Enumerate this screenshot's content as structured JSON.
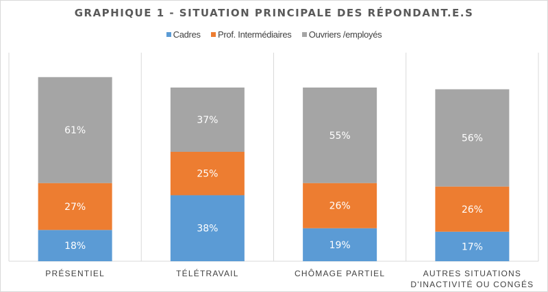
{
  "chart_data": {
    "type": "bar",
    "stacked": true,
    "title": "GRAPHIQUE 1 - SITUATION PRINCIPALE DES RÉPONDANT.E.S",
    "categories": [
      "PRÉSENTIEL",
      "TÉLÉTRAVAIL",
      "CHÔMAGE PARTIEL",
      [
        "AUTRES SITUATIONS",
        "D'INACTIVITÉ OU CONGÉS"
      ]
    ],
    "series": [
      {
        "name": "Cadres",
        "values": [
          18,
          38,
          19,
          17
        ],
        "color": "#5b9bd5"
      },
      {
        "name": "Prof. Intermédiaires",
        "values": [
          27,
          25,
          26,
          26
        ],
        "color": "#ed7d31"
      },
      {
        "name": "Ouvriers /employés",
        "values": [
          61,
          37,
          55,
          56
        ],
        "color": "#a5a5a5"
      }
    ],
    "value_format": "percent",
    "data_labels": true,
    "legend_position": "top",
    "grid": false
  }
}
